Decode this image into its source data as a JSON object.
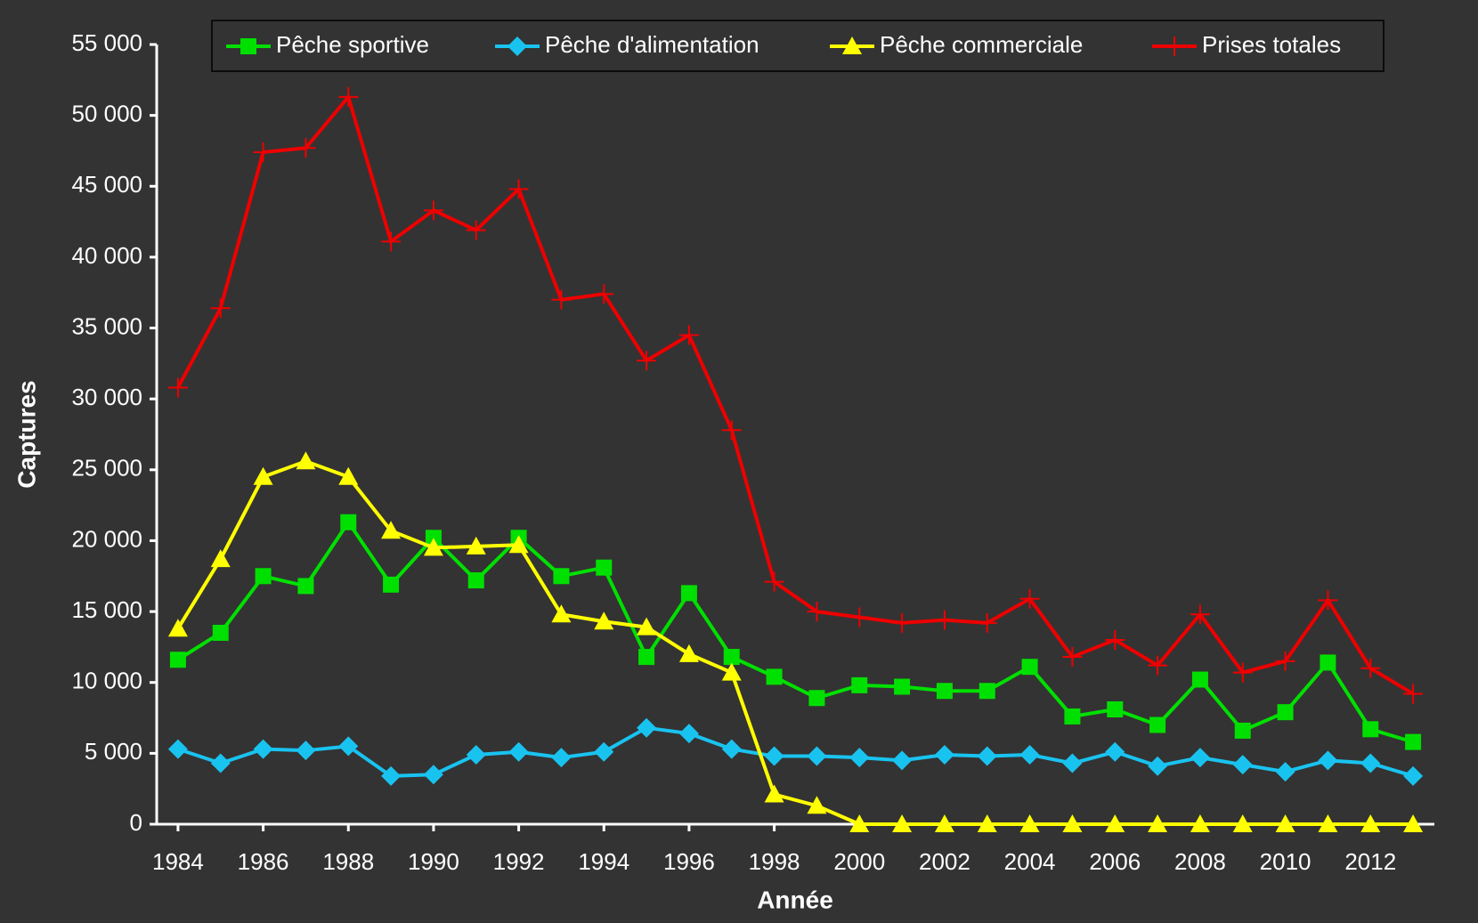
{
  "chart_data": {
    "type": "line",
    "xlabel": "Année",
    "ylabel": "Captures",
    "x": [
      1984,
      1985,
      1986,
      1987,
      1988,
      1989,
      1990,
      1991,
      1992,
      1993,
      1994,
      1995,
      1996,
      1997,
      1998,
      1999,
      2000,
      2001,
      2002,
      2003,
      2004,
      2005,
      2006,
      2007,
      2008,
      2009,
      2010,
      2011,
      2012,
      2013
    ],
    "xlim": [
      1983.5,
      2013.5
    ],
    "xticks": [
      1984,
      1986,
      1988,
      1990,
      1992,
      1994,
      1996,
      1998,
      2000,
      2002,
      2004,
      2006,
      2008,
      2010,
      2012
    ],
    "ylim": [
      0,
      55000
    ],
    "yticks": [
      0,
      {
        "value": 5000,
        "label": "5 000"
      },
      {
        "value": 10000,
        "label": "10 000"
      },
      {
        "value": 15000,
        "label": "15 000"
      },
      {
        "value": 20000,
        "label": "20 000"
      },
      {
        "value": 25000,
        "label": "25 000"
      },
      {
        "value": 30000,
        "label": "30 000"
      },
      {
        "value": 35000,
        "label": "35 000"
      },
      {
        "value": 40000,
        "label": "40 000"
      },
      {
        "value": 45000,
        "label": "45 000"
      },
      {
        "value": 50000,
        "label": "50 000"
      },
      {
        "value": 55000,
        "label": "55 000"
      }
    ],
    "legend": "top",
    "series": [
      {
        "name": "Pêche sportive",
        "color": "#00e000",
        "marker": "square",
        "values": [
          11600,
          13500,
          17500,
          16800,
          21300,
          16900,
          20200,
          17200,
          20200,
          17500,
          18100,
          11800,
          16300,
          11800,
          10400,
          8900,
          9800,
          9700,
          9400,
          9400,
          11100,
          7600,
          8100,
          7000,
          10200,
          6600,
          7900,
          11400,
          6700,
          5800
        ]
      },
      {
        "name": "Pêche d'alimentation",
        "color": "#19c3f0",
        "marker": "diamond",
        "values": [
          5300,
          4300,
          5300,
          5200,
          5500,
          3400,
          3500,
          4900,
          5100,
          4700,
          5100,
          6800,
          6400,
          5300,
          4800,
          4800,
          4700,
          4500,
          4900,
          4800,
          4900,
          4300,
          5100,
          4100,
          4700,
          4200,
          3700,
          4500,
          4300,
          3400
        ]
      },
      {
        "name": "Pêche commerciale",
        "color": "#ffff00",
        "marker": "triangle",
        "values": [
          13800,
          18700,
          24500,
          25600,
          24500,
          20700,
          19500,
          19600,
          19700,
          14800,
          14300,
          13900,
          12000,
          10700,
          2100,
          1300,
          0,
          0,
          0,
          0,
          0,
          0,
          0,
          0,
          0,
          0,
          0,
          0,
          0,
          0
        ]
      },
      {
        "name": "Prises totales",
        "color": "#ee0000",
        "marker": "plus",
        "values": [
          30800,
          36400,
          47400,
          47700,
          51300,
          41100,
          43300,
          41900,
          44800,
          37000,
          37400,
          32700,
          34500,
          27800,
          17100,
          15000,
          14600,
          14200,
          14400,
          14200,
          15900,
          11800,
          13000,
          11200,
          14800,
          10700,
          11500,
          15800,
          11000,
          9200
        ]
      }
    ]
  }
}
